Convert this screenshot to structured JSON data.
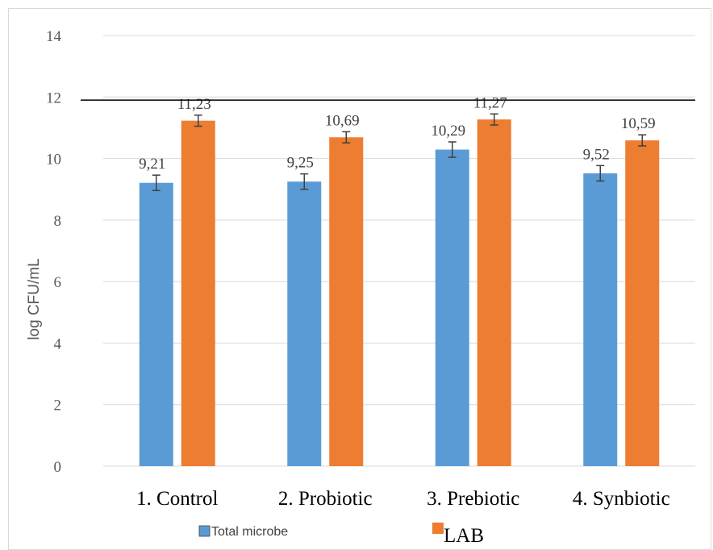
{
  "chart_data": {
    "type": "bar",
    "title": "",
    "xlabel": "",
    "ylabel": "log CFU/mL",
    "ylim": [
      0,
      14
    ],
    "yticks": [
      0,
      2,
      4,
      6,
      8,
      10,
      12,
      14
    ],
    "grid": true,
    "legend_position": "bottom",
    "categories": [
      "1. Control",
      "2. Probiotic",
      "3. Prebiotic",
      "4. Synbiotic"
    ],
    "series": [
      {
        "name": "Total microbe",
        "color": "#5b9bd5",
        "values": [
          9.21,
          9.25,
          10.29,
          9.52
        ],
        "labels": [
          "9,21",
          "9,25",
          "10,29",
          "9,52"
        ],
        "error": [
          0.25,
          0.25,
          0.25,
          0.25
        ]
      },
      {
        "name": "LAB",
        "color": "#ed7d31",
        "values": [
          11.23,
          10.69,
          11.27,
          10.59
        ],
        "labels": [
          "11,23",
          "10,69",
          "11,27",
          "10,59"
        ],
        "error": [
          0.18,
          0.18,
          0.18,
          0.18
        ]
      }
    ],
    "reference_line": 11.9
  }
}
